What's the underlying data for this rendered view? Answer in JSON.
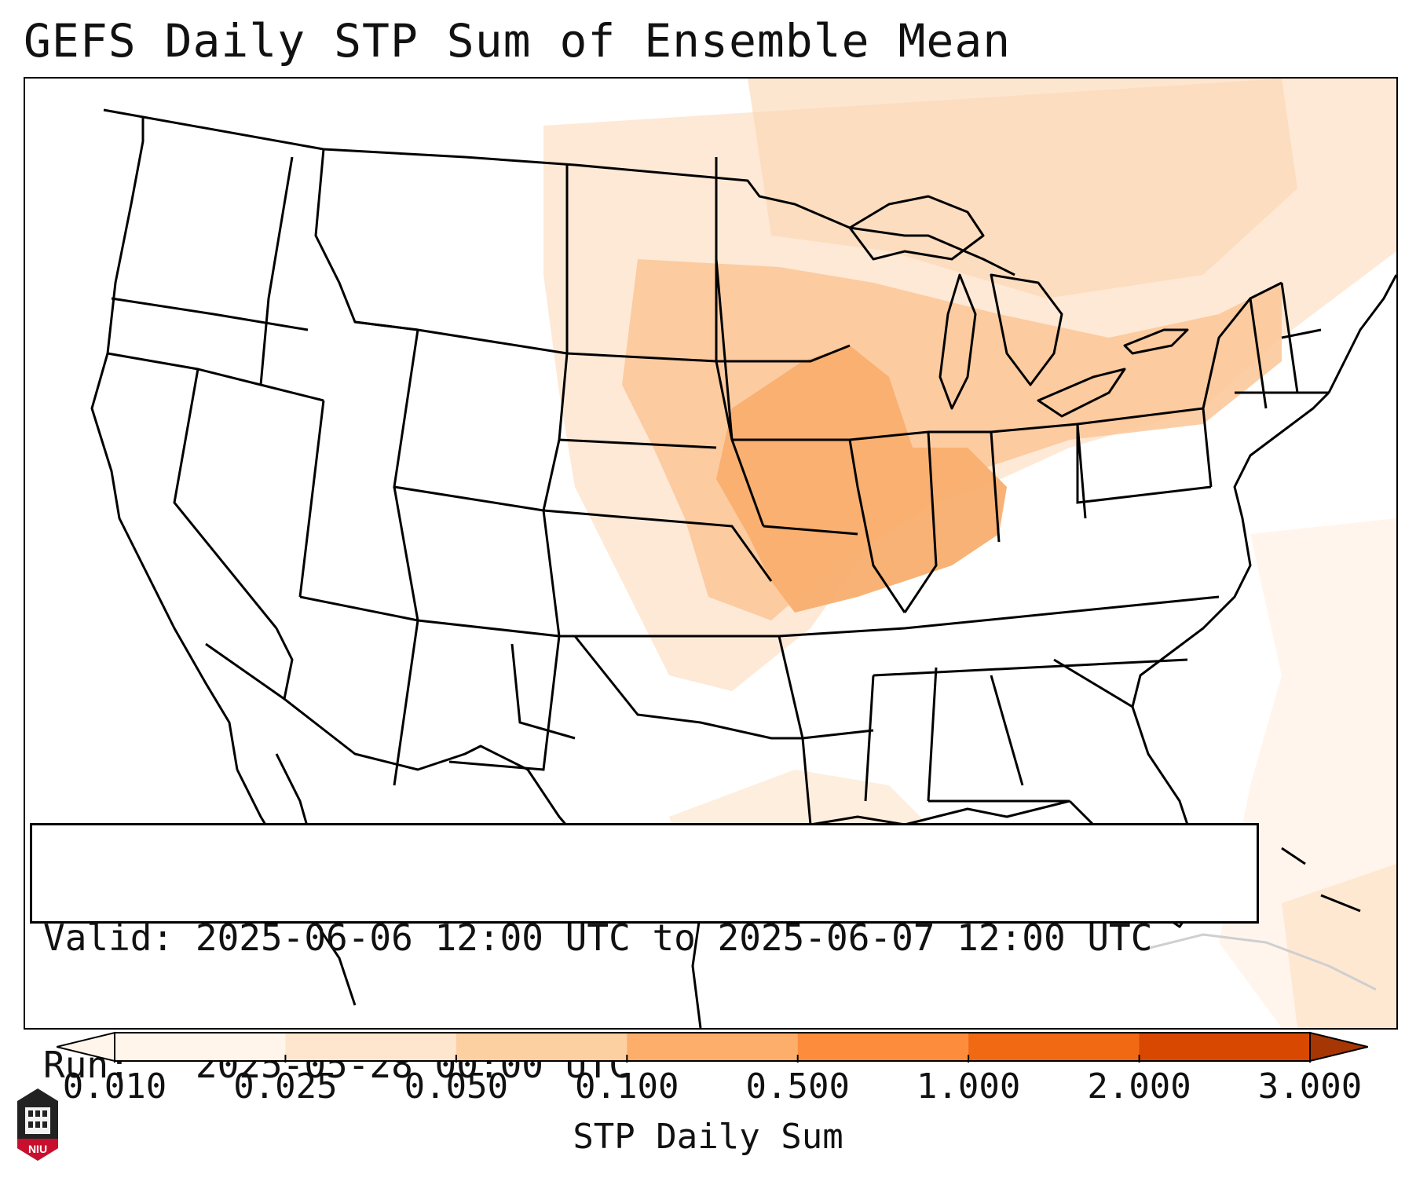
{
  "title": "GEFS Daily STP Sum of Ensemble Mean",
  "info": {
    "valid_label": "Valid:",
    "valid_value": "2025-06-06 12:00 UTC to 2025-06-07 12:00 UTC",
    "run_label": "Run:",
    "run_value": "2025-05-28 00:00 UTC"
  },
  "colorbar": {
    "label": "STP Daily Sum",
    "ticks": [
      "0.010",
      "0.025",
      "0.050",
      "0.100",
      "0.500",
      "1.000",
      "2.000",
      "3.000"
    ],
    "colors": [
      "#fff5eb",
      "#fee6ce",
      "#fdd0a2",
      "#fdae6b",
      "#fd8d3c",
      "#f16913",
      "#d94801",
      "#a63603"
    ],
    "extend": "both"
  },
  "map": {
    "region": "CONUS",
    "field_colors": {
      "lightest": "#fff1e4",
      "light": "#fde2c8",
      "medium": "#fbc596",
      "strong": "#f9ae6e"
    }
  },
  "logo": {
    "text": "NIU",
    "color": "#c8102e"
  }
}
